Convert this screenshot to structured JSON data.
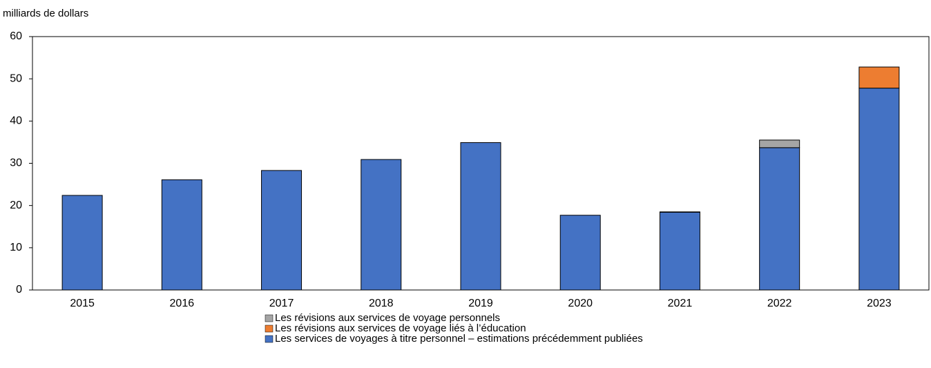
{
  "chart_data": {
    "type": "bar",
    "stacked": true,
    "y_label": "milliards de dollars",
    "categories": [
      "2015",
      "2016",
      "2017",
      "2018",
      "2019",
      "2020",
      "2021",
      "2022",
      "2023"
    ],
    "series": [
      {
        "name": "Les révisions aux services de voyage personnels",
        "color": "#a5a5a5",
        "values": [
          null,
          null,
          null,
          null,
          null,
          null,
          0.1,
          1.8,
          null
        ]
      },
      {
        "name": "Les révisions aux services de voyage liés à l’éducation",
        "color": "#ed7d31",
        "values": [
          null,
          null,
          null,
          null,
          null,
          null,
          null,
          null,
          5.0
        ]
      },
      {
        "name": "Les services de voyages à titre personnel – estimations précédemment publiées",
        "color": "#4472c4",
        "values": [
          22.4,
          26.1,
          28.3,
          30.9,
          34.9,
          17.7,
          18.4,
          33.7,
          47.8
        ]
      }
    ],
    "ylim": [
      0,
      60
    ],
    "yticks": [
      0,
      10,
      20,
      30,
      40,
      50,
      60
    ],
    "grid": false,
    "legend": "bottom"
  }
}
